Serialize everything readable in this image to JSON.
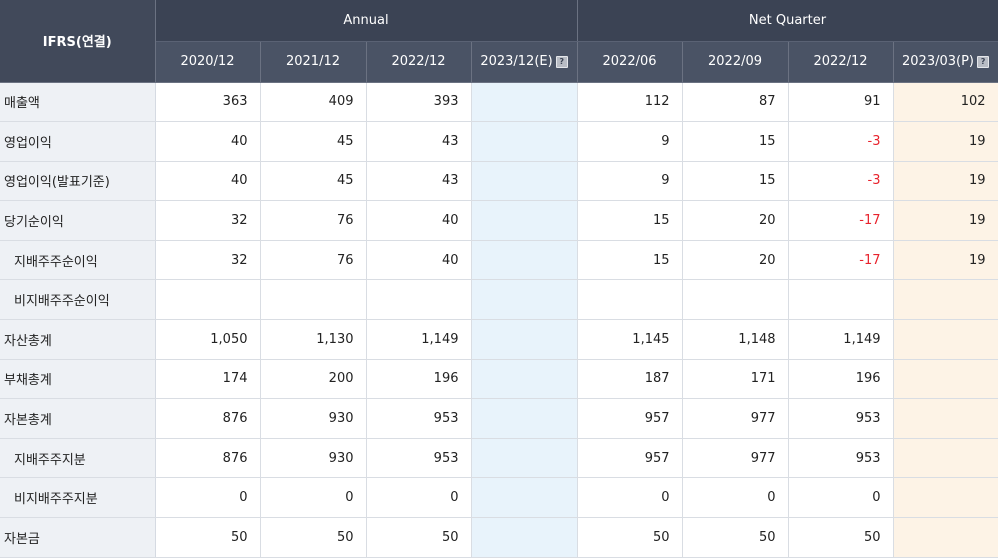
{
  "header": {
    "corner_label": "IFRS(연결)",
    "annual_label": "Annual",
    "quarter_label": "Net Quarter",
    "annual_periods": [
      "2020/12",
      "2021/12",
      "2022/12",
      "2023/12(E)"
    ],
    "quarter_periods": [
      "2022/06",
      "2022/09",
      "2022/12",
      "2023/03(P)"
    ],
    "info_icon_glyph": "?"
  },
  "colors": {
    "header_bg": "#3b4354",
    "estimate_col_bg": "#e8f3fb",
    "provisional_col_bg": "#fdf3e6",
    "negative_text": "#e8232d"
  },
  "rows": [
    {
      "label": "매출액",
      "sub": false,
      "annual": [
        "363",
        "409",
        "393",
        ""
      ],
      "quarter": [
        "112",
        "87",
        "91",
        "102"
      ],
      "neg": [
        false,
        false,
        false,
        false,
        false,
        false,
        false,
        false
      ]
    },
    {
      "label": "영업이익",
      "sub": false,
      "annual": [
        "40",
        "45",
        "43",
        ""
      ],
      "quarter": [
        "9",
        "15",
        "-3",
        "19"
      ],
      "neg": [
        false,
        false,
        false,
        false,
        false,
        false,
        true,
        false
      ]
    },
    {
      "label": "영업이익(발표기준)",
      "sub": false,
      "annual": [
        "40",
        "45",
        "43",
        ""
      ],
      "quarter": [
        "9",
        "15",
        "-3",
        "19"
      ],
      "neg": [
        false,
        false,
        false,
        false,
        false,
        false,
        true,
        false
      ]
    },
    {
      "label": "당기순이익",
      "sub": false,
      "annual": [
        "32",
        "76",
        "40",
        ""
      ],
      "quarter": [
        "15",
        "20",
        "-17",
        "19"
      ],
      "neg": [
        false,
        false,
        false,
        false,
        false,
        false,
        true,
        false
      ]
    },
    {
      "label": "지배주주순이익",
      "sub": true,
      "annual": [
        "32",
        "76",
        "40",
        ""
      ],
      "quarter": [
        "15",
        "20",
        "-17",
        "19"
      ],
      "neg": [
        false,
        false,
        false,
        false,
        false,
        false,
        true,
        false
      ]
    },
    {
      "label": "비지배주주순이익",
      "sub": true,
      "annual": [
        "",
        "",
        "",
        ""
      ],
      "quarter": [
        "",
        "",
        "",
        ""
      ],
      "neg": [
        false,
        false,
        false,
        false,
        false,
        false,
        false,
        false
      ]
    },
    {
      "label": "자산총계",
      "sub": false,
      "annual": [
        "1,050",
        "1,130",
        "1,149",
        ""
      ],
      "quarter": [
        "1,145",
        "1,148",
        "1,149",
        ""
      ],
      "neg": [
        false,
        false,
        false,
        false,
        false,
        false,
        false,
        false
      ]
    },
    {
      "label": "부채총계",
      "sub": false,
      "annual": [
        "174",
        "200",
        "196",
        ""
      ],
      "quarter": [
        "187",
        "171",
        "196",
        ""
      ],
      "neg": [
        false,
        false,
        false,
        false,
        false,
        false,
        false,
        false
      ]
    },
    {
      "label": "자본총계",
      "sub": false,
      "annual": [
        "876",
        "930",
        "953",
        ""
      ],
      "quarter": [
        "957",
        "977",
        "953",
        ""
      ],
      "neg": [
        false,
        false,
        false,
        false,
        false,
        false,
        false,
        false
      ]
    },
    {
      "label": "지배주주지분",
      "sub": true,
      "annual": [
        "876",
        "930",
        "953",
        ""
      ],
      "quarter": [
        "957",
        "977",
        "953",
        ""
      ],
      "neg": [
        false,
        false,
        false,
        false,
        false,
        false,
        false,
        false
      ]
    },
    {
      "label": "비지배주주지분",
      "sub": true,
      "annual": [
        "0",
        "0",
        "0",
        ""
      ],
      "quarter": [
        "0",
        "0",
        "0",
        ""
      ],
      "neg": [
        false,
        false,
        false,
        false,
        false,
        false,
        false,
        false
      ]
    },
    {
      "label": "자본금",
      "sub": false,
      "annual": [
        "50",
        "50",
        "50",
        ""
      ],
      "quarter": [
        "50",
        "50",
        "50",
        ""
      ],
      "neg": [
        false,
        false,
        false,
        false,
        false,
        false,
        false,
        false
      ]
    }
  ]
}
